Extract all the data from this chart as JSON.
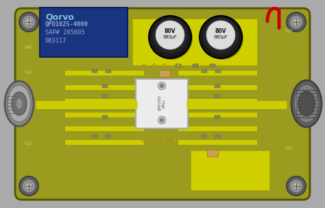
{
  "title": "",
  "board_color": "#8B8B18",
  "board_surface": "#9A9B1F",
  "yellow": "#C8C800",
  "bright_yellow": "#D4D400",
  "dark_yellow": "#6B6B00",
  "label_blue_bg": "#1A3580",
  "label_text": "#99AACC",
  "logo_text": "Qorvo",
  "line1": "QPD1025-4000",
  "line2": "SAP# 285605",
  "line3": "083117",
  "corner_screw_color": "#888888",
  "connector_color": "#999999",
  "ic_color": "#E8E8E8",
  "red_wire": "#CC0000",
  "trace_color": "#CCCC00",
  "fig_w": 4.74,
  "fig_h": 3.03,
  "dpi": 100
}
